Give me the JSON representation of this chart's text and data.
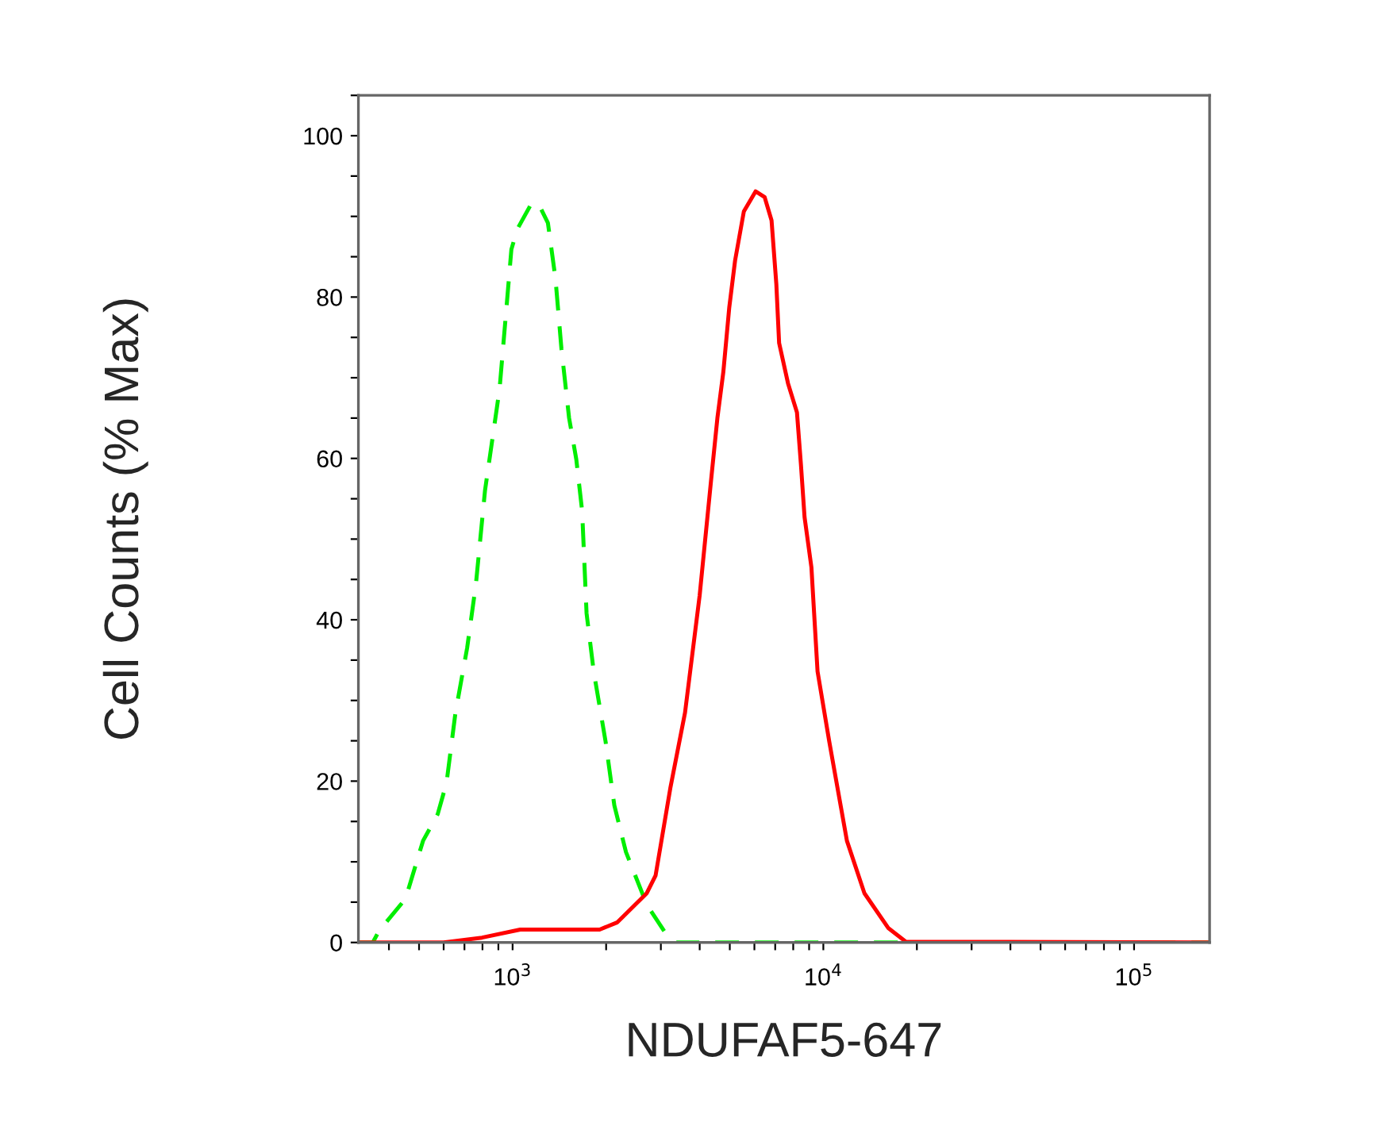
{
  "chart_data": {
    "type": "line",
    "xlabel": "NDUFAF5-647",
    "ylabel": "Cell Counts (% Max)",
    "log": "x",
    "xlim": [
      319,
      175000
    ],
    "ylim": [
      0,
      105
    ],
    "xticks": [
      {
        "value": 400,
        "label": null
      },
      {
        "value": 500,
        "label": null
      },
      {
        "value": 600,
        "label": null
      },
      {
        "value": 700,
        "label": null
      },
      {
        "value": 800,
        "label": null
      },
      {
        "value": 900,
        "label": null
      },
      {
        "value": 1000,
        "label": "10$^{3}$"
      },
      {
        "value": 2000,
        "label": null
      },
      {
        "value": 3000,
        "label": null
      },
      {
        "value": 4000,
        "label": null
      },
      {
        "value": 5000,
        "label": null
      },
      {
        "value": 6000,
        "label": null
      },
      {
        "value": 7000,
        "label": null
      },
      {
        "value": 8000,
        "label": null
      },
      {
        "value": 9000,
        "label": null
      },
      {
        "value": 10000,
        "label": "10$^{4}$"
      },
      {
        "value": 20000,
        "label": null
      },
      {
        "value": 30000,
        "label": null
      },
      {
        "value": 40000,
        "label": null
      },
      {
        "value": 50000,
        "label": null
      },
      {
        "value": 60000,
        "label": null
      },
      {
        "value": 70000,
        "label": null
      },
      {
        "value": 80000,
        "label": null
      },
      {
        "value": 90000,
        "label": null
      },
      {
        "value": 100000,
        "label": "10$^{5}$"
      }
    ],
    "yticks": [
      0,
      {
        "value": 5,
        "label": null
      },
      {
        "value": 10,
        "label": null
      },
      {
        "value": 15,
        "label": null
      },
      20,
      {
        "value": 25,
        "label": null
      },
      {
        "value": 30,
        "label": null
      },
      {
        "value": 35,
        "label": null
      },
      40,
      {
        "value": 45,
        "label": null
      },
      {
        "value": 50,
        "label": null
      },
      {
        "value": 55,
        "label": null
      },
      60,
      {
        "value": 65,
        "label": null
      },
      {
        "value": 70,
        "label": null
      },
      {
        "value": 75,
        "label": null
      },
      80,
      {
        "value": 85,
        "label": null
      },
      {
        "value": 90,
        "label": null
      },
      {
        "value": 95,
        "label": null
      },
      100,
      {
        "value": 105,
        "label": null
      }
    ],
    "grid": false,
    "marker": "none",
    "series": [
      {
        "color": "#00ee00",
        "line_style": "dashed",
        "x": [
          319,
          355,
          371,
          452,
          515,
          574,
          613,
          655,
          714,
          762,
          815,
          908,
          949,
          991,
          1035,
          1154,
          1232,
          1299,
          1374,
          1436,
          1520,
          1603,
          1674,
          1730,
          1824,
          1992,
          2125,
          2317,
          2702,
          3076,
          3365,
          10000,
          175000
        ],
        "values": [
          0,
          0,
          1.4,
          5.4,
          12.6,
          15.9,
          19.8,
          28.5,
          36.5,
          44.4,
          56,
          68.6,
          77.3,
          85.9,
          88.4,
          91.7,
          91.0,
          89.2,
          82.3,
          73.6,
          65,
          59.9,
          53.5,
          40.8,
          33.6,
          24.9,
          17.0,
          11.2,
          4.7,
          1.4,
          0,
          0,
          0
        ]
      },
      {
        "color": "#ff0000",
        "line_style": "solid",
        "x": [
          319,
          600,
          797,
          1058,
          1906,
          2174,
          2702,
          2885,
          3217,
          3589,
          3999,
          4355,
          4561,
          4766,
          4980,
          5199,
          5548,
          6053,
          6471,
          6813,
          7059,
          7206,
          7698,
          8225,
          8472,
          8702,
          9155,
          9580,
          10450,
          11910,
          13560,
          16170,
          18420,
          175000
        ],
        "values": [
          0,
          0,
          0.6,
          1.6,
          1.6,
          2.5,
          6.1,
          8.3,
          19.1,
          28.5,
          43,
          57.4,
          65,
          70.7,
          78.7,
          84.5,
          90.6,
          93.1,
          92.4,
          89.5,
          81.6,
          74.3,
          69.3,
          65.7,
          59.2,
          52.7,
          46.5,
          33.6,
          24.9,
          12.6,
          6.1,
          1.8,
          0.1,
          0
        ]
      }
    ]
  }
}
